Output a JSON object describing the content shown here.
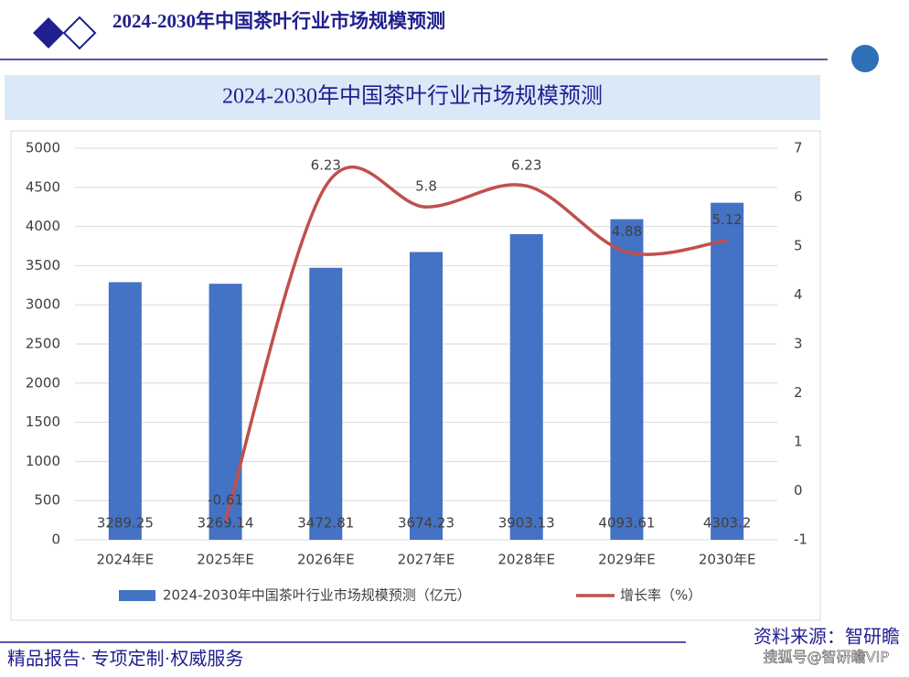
{
  "header": {
    "title": "2024-2030年中国茶叶行业市场规模预测"
  },
  "chart_data": {
    "type": "bar",
    "title": "2024-2030年中国茶叶行业市场规模预测",
    "categories": [
      "2024年E",
      "2025年E",
      "2026年E",
      "2027年E",
      "2028年E",
      "2029年E",
      "2030年E"
    ],
    "series": [
      {
        "name": "2024-2030年中国茶叶行业市场规模预测（亿元）",
        "type": "bar",
        "color": "#4472c4",
        "values": [
          3289.25,
          3269.14,
          3472.81,
          3674.23,
          3903.13,
          4093.61,
          4303.2
        ]
      },
      {
        "name": "增长率（%）",
        "type": "line",
        "axis": "y2",
        "color": "#c0504d",
        "values": [
          null,
          -0.61,
          6.23,
          5.8,
          6.23,
          4.88,
          5.12
        ]
      }
    ],
    "ylim": [
      0,
      5000
    ],
    "yticks": [
      0,
      500,
      1000,
      1500,
      2000,
      2500,
      3000,
      3500,
      4000,
      4500,
      5000
    ],
    "y2lim": [
      -1,
      7
    ],
    "y2ticks": [
      -1,
      0,
      1,
      2,
      3,
      4,
      5,
      6,
      7
    ],
    "legend": "bottom"
  },
  "footer": {
    "slogan": "精品报告· 专项定制·权威服务",
    "source": "资料来源：智研瞻",
    "watermark": "搜狐号@智研瞻VIP"
  }
}
